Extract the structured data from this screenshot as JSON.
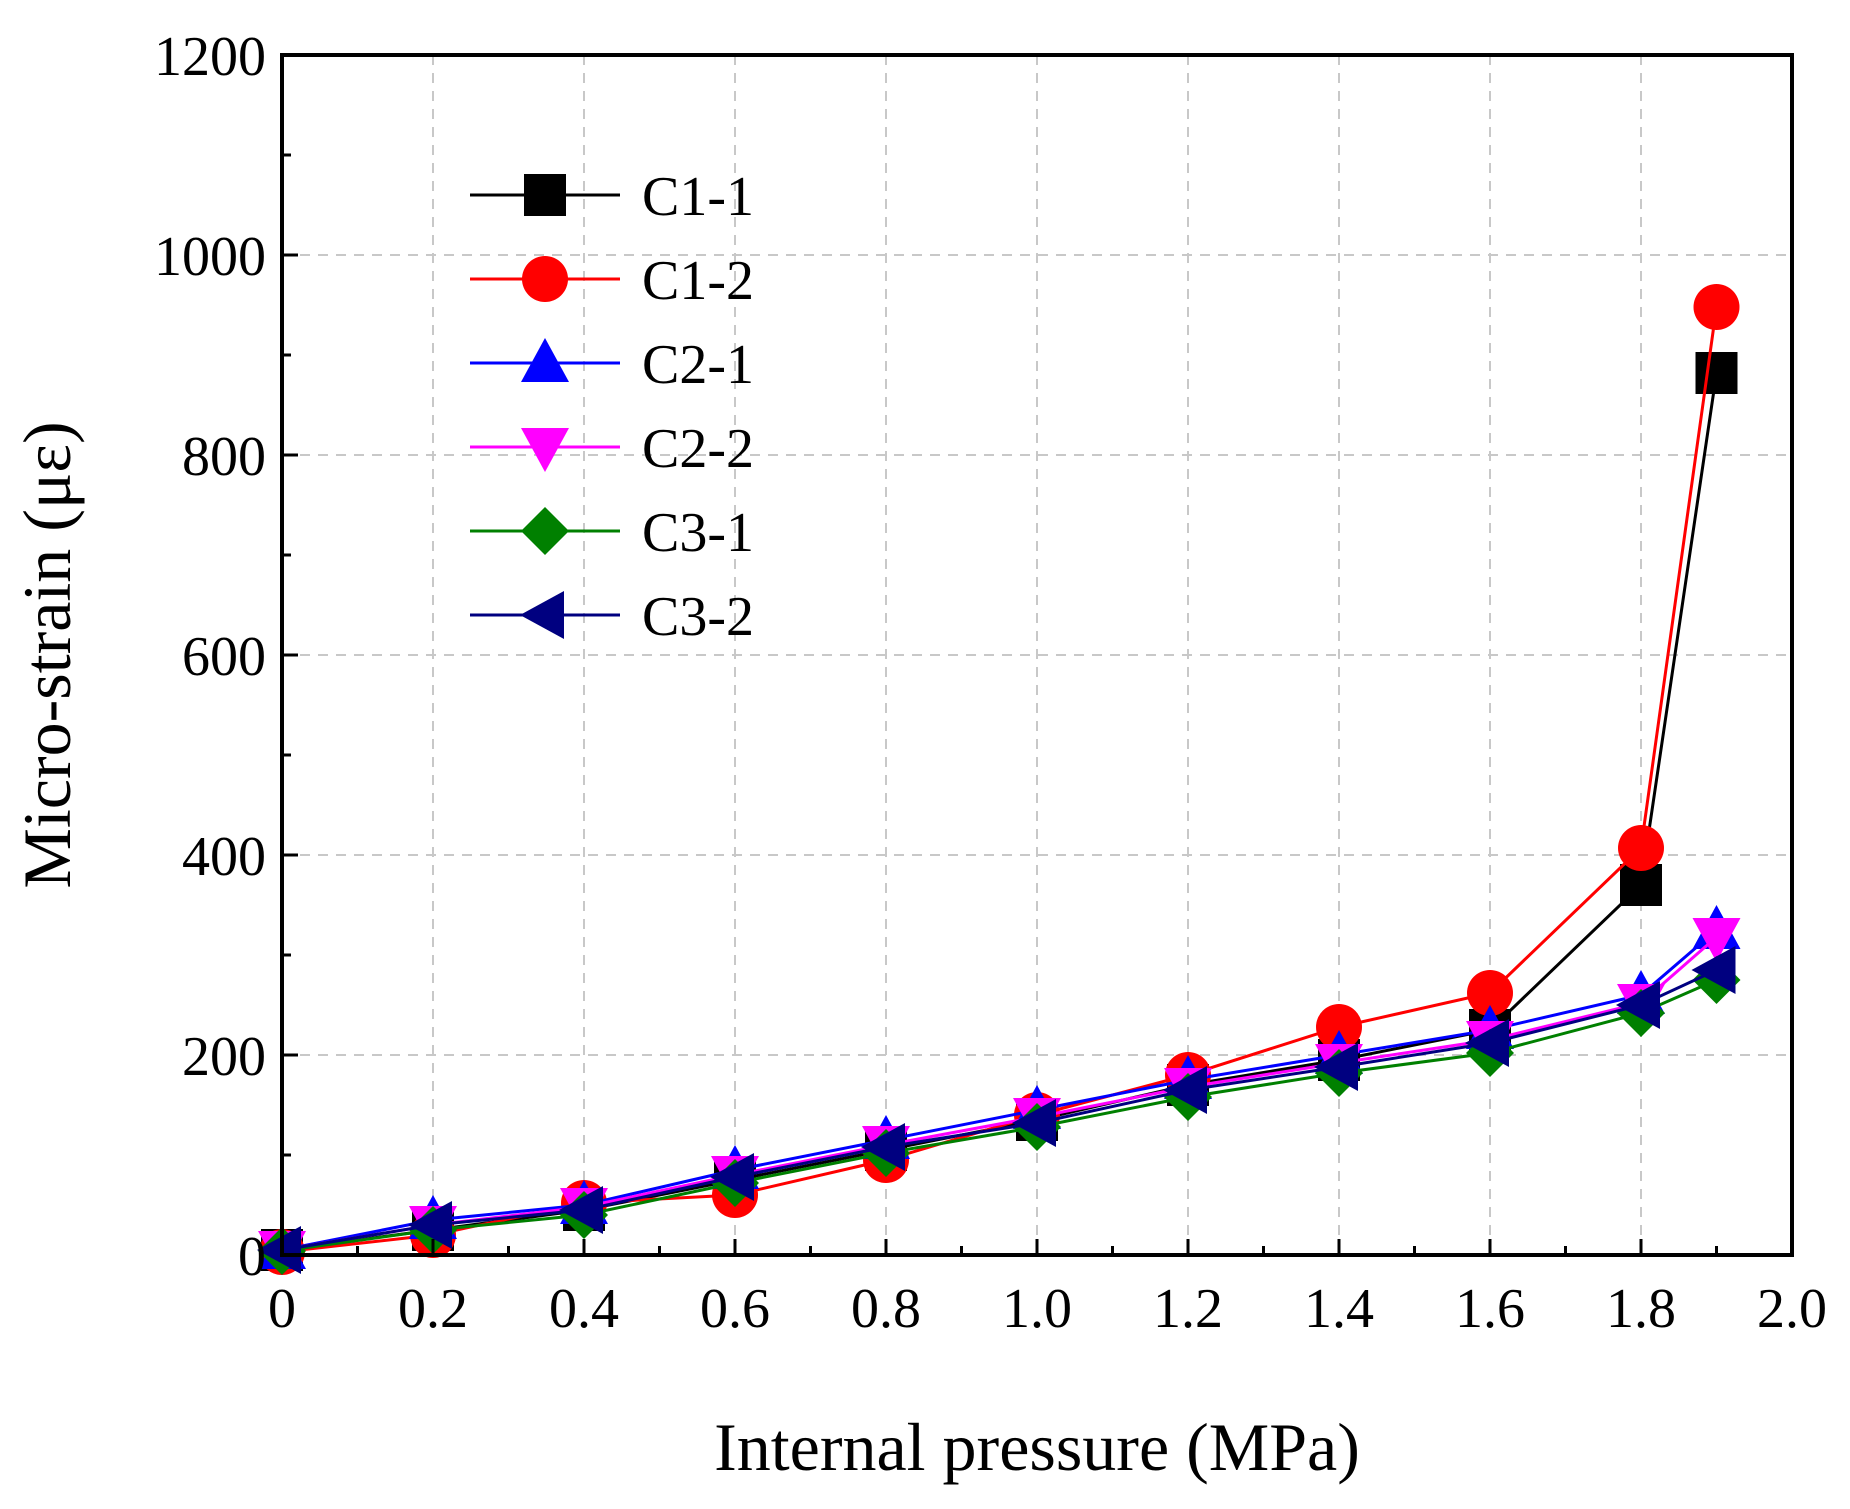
{
  "chart_data": {
    "type": "line",
    "title": "",
    "xlabel": "Internal pressure (MPa)",
    "ylabel": "Micro-strain (με)",
    "xlim": [
      0,
      2.0
    ],
    "ylim": [
      0,
      1200
    ],
    "xticks": [
      0,
      0.2,
      0.4,
      0.6,
      0.8,
      1.0,
      1.2,
      1.4,
      1.6,
      1.8,
      2.0
    ],
    "xtick_labels": [
      "0",
      "0.2",
      "0.4",
      "0.6",
      "0.8",
      "1.0",
      "1.2",
      "1.4",
      "1.6",
      "1.8",
      "2.0"
    ],
    "yticks": [
      0,
      200,
      400,
      600,
      800,
      1000,
      1200
    ],
    "ytick_labels": [
      "0",
      "200",
      "400",
      "600",
      "800",
      "1000",
      "1200"
    ],
    "grid": true,
    "legend_position": "top-left",
    "x": [
      0,
      0.2,
      0.4,
      0.6,
      0.8,
      1.0,
      1.2,
      1.4,
      1.6,
      1.8,
      1.9
    ],
    "series": [
      {
        "name": "C1-1",
        "color": "#000000",
        "marker": "square",
        "values": [
          5,
          25,
          45,
          75,
          105,
          135,
          170,
          195,
          225,
          370,
          882
        ]
      },
      {
        "name": "C1-2",
        "color": "#ff0000",
        "marker": "circle",
        "values": [
          3,
          20,
          52,
          60,
          95,
          140,
          180,
          228,
          262,
          407,
          948
        ]
      },
      {
        "name": "C2-1",
        "color": "#0000ff",
        "marker": "triangle-up",
        "values": [
          5,
          35,
          50,
          85,
          115,
          145,
          175,
          200,
          225,
          260,
          325
        ]
      },
      {
        "name": "C2-2",
        "color": "#ff00ff",
        "marker": "triangle-down",
        "values": [
          5,
          30,
          48,
          80,
          110,
          138,
          168,
          192,
          215,
          252,
          318
        ]
      },
      {
        "name": "C3-1",
        "color": "#008000",
        "marker": "diamond",
        "values": [
          4,
          25,
          40,
          72,
          102,
          128,
          158,
          182,
          202,
          242,
          275
        ]
      },
      {
        "name": "C3-2",
        "color": "#000080",
        "marker": "triangle-left",
        "values": [
          5,
          30,
          45,
          78,
          108,
          132,
          165,
          188,
          212,
          250,
          285
        ]
      }
    ]
  }
}
